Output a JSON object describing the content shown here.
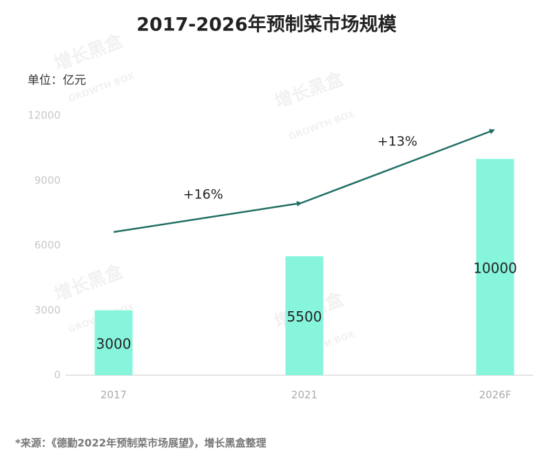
{
  "chart_data": {
    "type": "bar",
    "title": "2017-2026年预制菜市场规模",
    "unit_label": "单位：亿元",
    "categories": [
      "2017",
      "2021",
      "2026F"
    ],
    "values": [
      3000,
      5500,
      10000
    ],
    "color": "#86f5dc",
    "ylim": [
      0,
      12000
    ],
    "yticks": [
      0,
      3000,
      6000,
      9000,
      12000
    ],
    "grid": false,
    "annotations": [
      "+16%",
      "+13%"
    ],
    "source": "*来源：《德勤2022年预制菜市场展望》，增长黑盒整理",
    "watermark": "增长黑盒",
    "watermark_sub": "GROWTH BOX"
  }
}
